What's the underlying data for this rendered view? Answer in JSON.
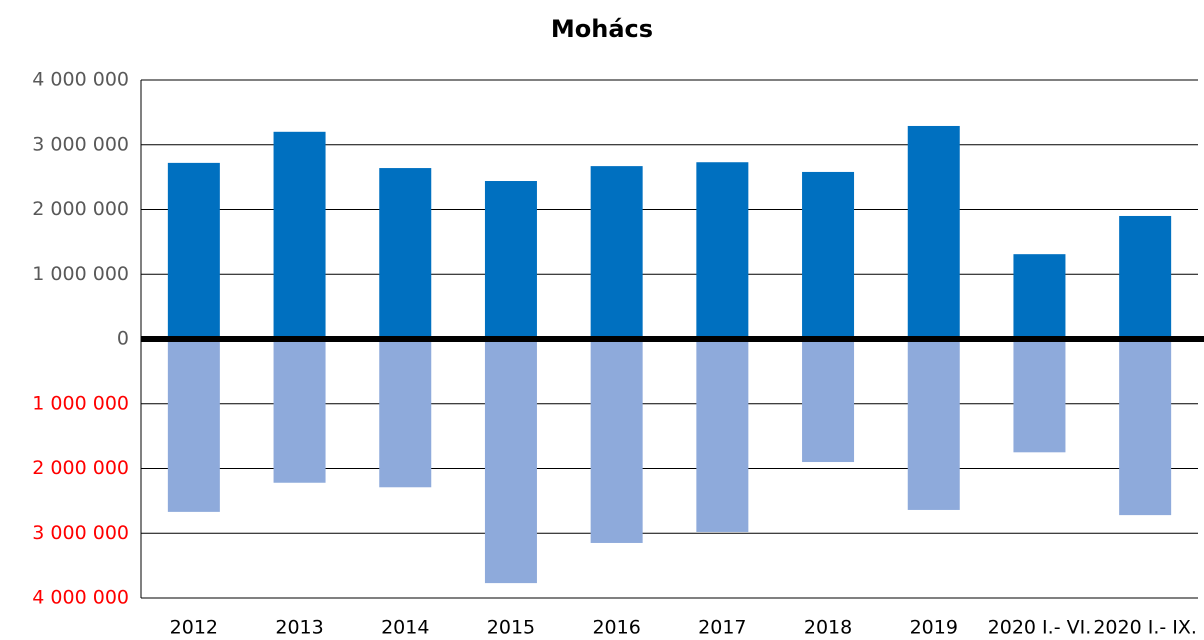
{
  "chart_data": {
    "type": "bar",
    "title": "Mohács",
    "categories": [
      "2012",
      "2013",
      "2014",
      "2015",
      "2016",
      "2017",
      "2018",
      "2019",
      "2020 I.- VI.",
      "2020 I.- IX."
    ],
    "series": [
      {
        "color": "#0070c0",
        "values": [
          2720000,
          3200000,
          2640000,
          2440000,
          2670000,
          2730000,
          2580000,
          3290000,
          1310000,
          1900000
        ]
      },
      {
        "color": "#8eaadb",
        "values": [
          -2670000,
          -2220000,
          -2290000,
          -3770000,
          -3150000,
          -2980000,
          -1900000,
          -2640000,
          -1750000,
          -2720000
        ]
      }
    ],
    "ylim": [
      -4000000,
      4000000
    ],
    "yticks": [
      {
        "value": -4000000,
        "label": "4 000 000"
      },
      {
        "value": -3000000,
        "label": "3 000 000"
      },
      {
        "value": -2000000,
        "label": "2 000 000"
      },
      {
        "value": -1000000,
        "label": "1 000 000"
      },
      0,
      {
        "value": 1000000,
        "label": "1 000 000"
      },
      {
        "value": 2000000,
        "label": "2 000 000"
      },
      {
        "value": 3000000,
        "label": "3 000 000"
      },
      {
        "value": 4000000,
        "label": "4 000 000"
      }
    ],
    "grid": true,
    "negative_tick_color": "#ff0000"
  }
}
